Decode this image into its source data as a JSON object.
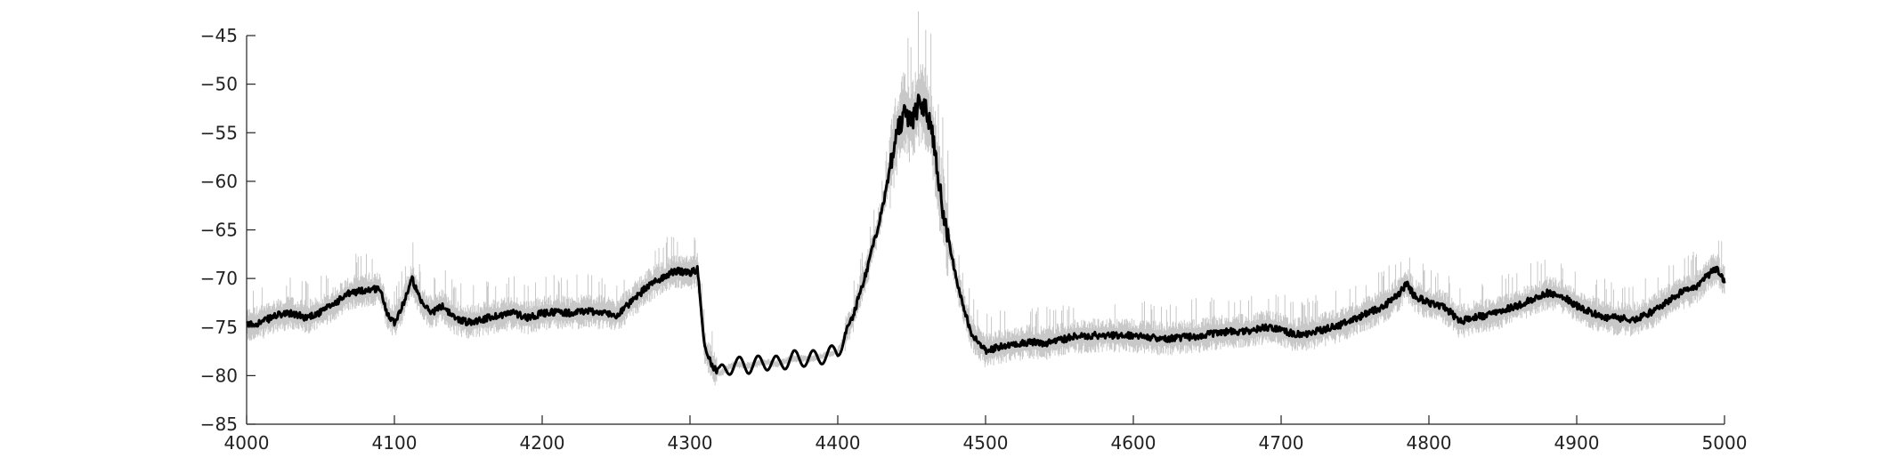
{
  "chart_data": {
    "type": "line",
    "title": "",
    "xlabel": "",
    "ylabel": "",
    "xlim": [
      4000,
      5000
    ],
    "ylim": [
      -85,
      -45
    ],
    "grid": false,
    "legend": "none",
    "x_ticks": [
      4000,
      4100,
      4200,
      4300,
      4400,
      4500,
      4600,
      4700,
      4800,
      4900,
      5000
    ],
    "y_ticks": [
      -45,
      -50,
      -55,
      -60,
      -65,
      -70,
      -75,
      -80,
      -85
    ],
    "x_tick_labels": [
      "4000",
      "4100",
      "4200",
      "4300",
      "4400",
      "4500",
      "4600",
      "4700",
      "4800",
      "4900",
      "5000"
    ],
    "y_tick_labels": [
      "−45",
      "−50",
      "−55",
      "−60",
      "−65",
      "−70",
      "−75",
      "−80",
      "−85"
    ],
    "colors": {
      "mean_line": "#000000",
      "noise_band": "#c8c8c8",
      "axis": "#222222"
    },
    "series": [
      {
        "role": "mean",
        "x": [
          4000,
          4010,
          4020,
          4030,
          4040,
          4050,
          4060,
          4070,
          4080,
          4090,
          4095,
          4100,
          4105,
          4112,
          4118,
          4125,
          4133,
          4140,
          4150,
          4160,
          4170,
          4180,
          4190,
          4200,
          4210,
          4220,
          4230,
          4240,
          4250,
          4260,
          4270,
          4280,
          4290,
          4300,
          4305,
          4310,
          4315,
          4320,
          4330,
          4340,
          4350,
          4360,
          4370,
          4380,
          4390,
          4400,
          4410,
          4420,
          4430,
          4440,
          4445,
          4450,
          4455,
          4460,
          4465,
          4470,
          4480,
          4490,
          4500,
          4510,
          4520,
          4530,
          4540,
          4560,
          4580,
          4600,
          4620,
          4640,
          4660,
          4680,
          4690,
          4700,
          4710,
          4720,
          4740,
          4760,
          4770,
          4780,
          4785,
          4790,
          4800,
          4810,
          4815,
          4820,
          4830,
          4840,
          4860,
          4880,
          4890,
          4900,
          4910,
          4920,
          4940,
          4950,
          4960,
          4970,
          4980,
          4990,
          4995,
          5000
        ],
        "y": [
          -74.8,
          -74.5,
          -73.8,
          -73.6,
          -74.0,
          -73.5,
          -72.5,
          -71.5,
          -71.2,
          -71.0,
          -73.5,
          -74.5,
          -73.0,
          -70.0,
          -72.5,
          -73.5,
          -72.8,
          -74.0,
          -74.5,
          -74.2,
          -73.8,
          -73.5,
          -74.0,
          -73.6,
          -73.4,
          -73.6,
          -73.3,
          -73.5,
          -73.8,
          -72.5,
          -71.0,
          -70.0,
          -69.2,
          -69.5,
          -69.0,
          -77.0,
          -79.0,
          -79.8,
          -78.8,
          -79.0,
          -78.6,
          -78.8,
          -78.2,
          -78.3,
          -78.0,
          -77.5,
          -74.0,
          -69.0,
          -63.0,
          -55.0,
          -53.0,
          -54.0,
          -52.0,
          -52.5,
          -56.0,
          -62.0,
          -70.0,
          -75.5,
          -77.5,
          -77.0,
          -76.8,
          -76.5,
          -76.7,
          -76.0,
          -75.8,
          -75.9,
          -76.2,
          -76.0,
          -75.5,
          -75.4,
          -75.0,
          -75.3,
          -75.8,
          -75.6,
          -74.8,
          -73.5,
          -72.8,
          -71.5,
          -70.5,
          -71.8,
          -72.5,
          -73.0,
          -73.5,
          -74.5,
          -74.0,
          -73.8,
          -72.8,
          -71.5,
          -71.8,
          -72.8,
          -73.5,
          -74.0,
          -74.2,
          -73.5,
          -72.5,
          -71.5,
          -71.0,
          -69.5,
          -69.0,
          -70.5
        ]
      }
    ]
  }
}
